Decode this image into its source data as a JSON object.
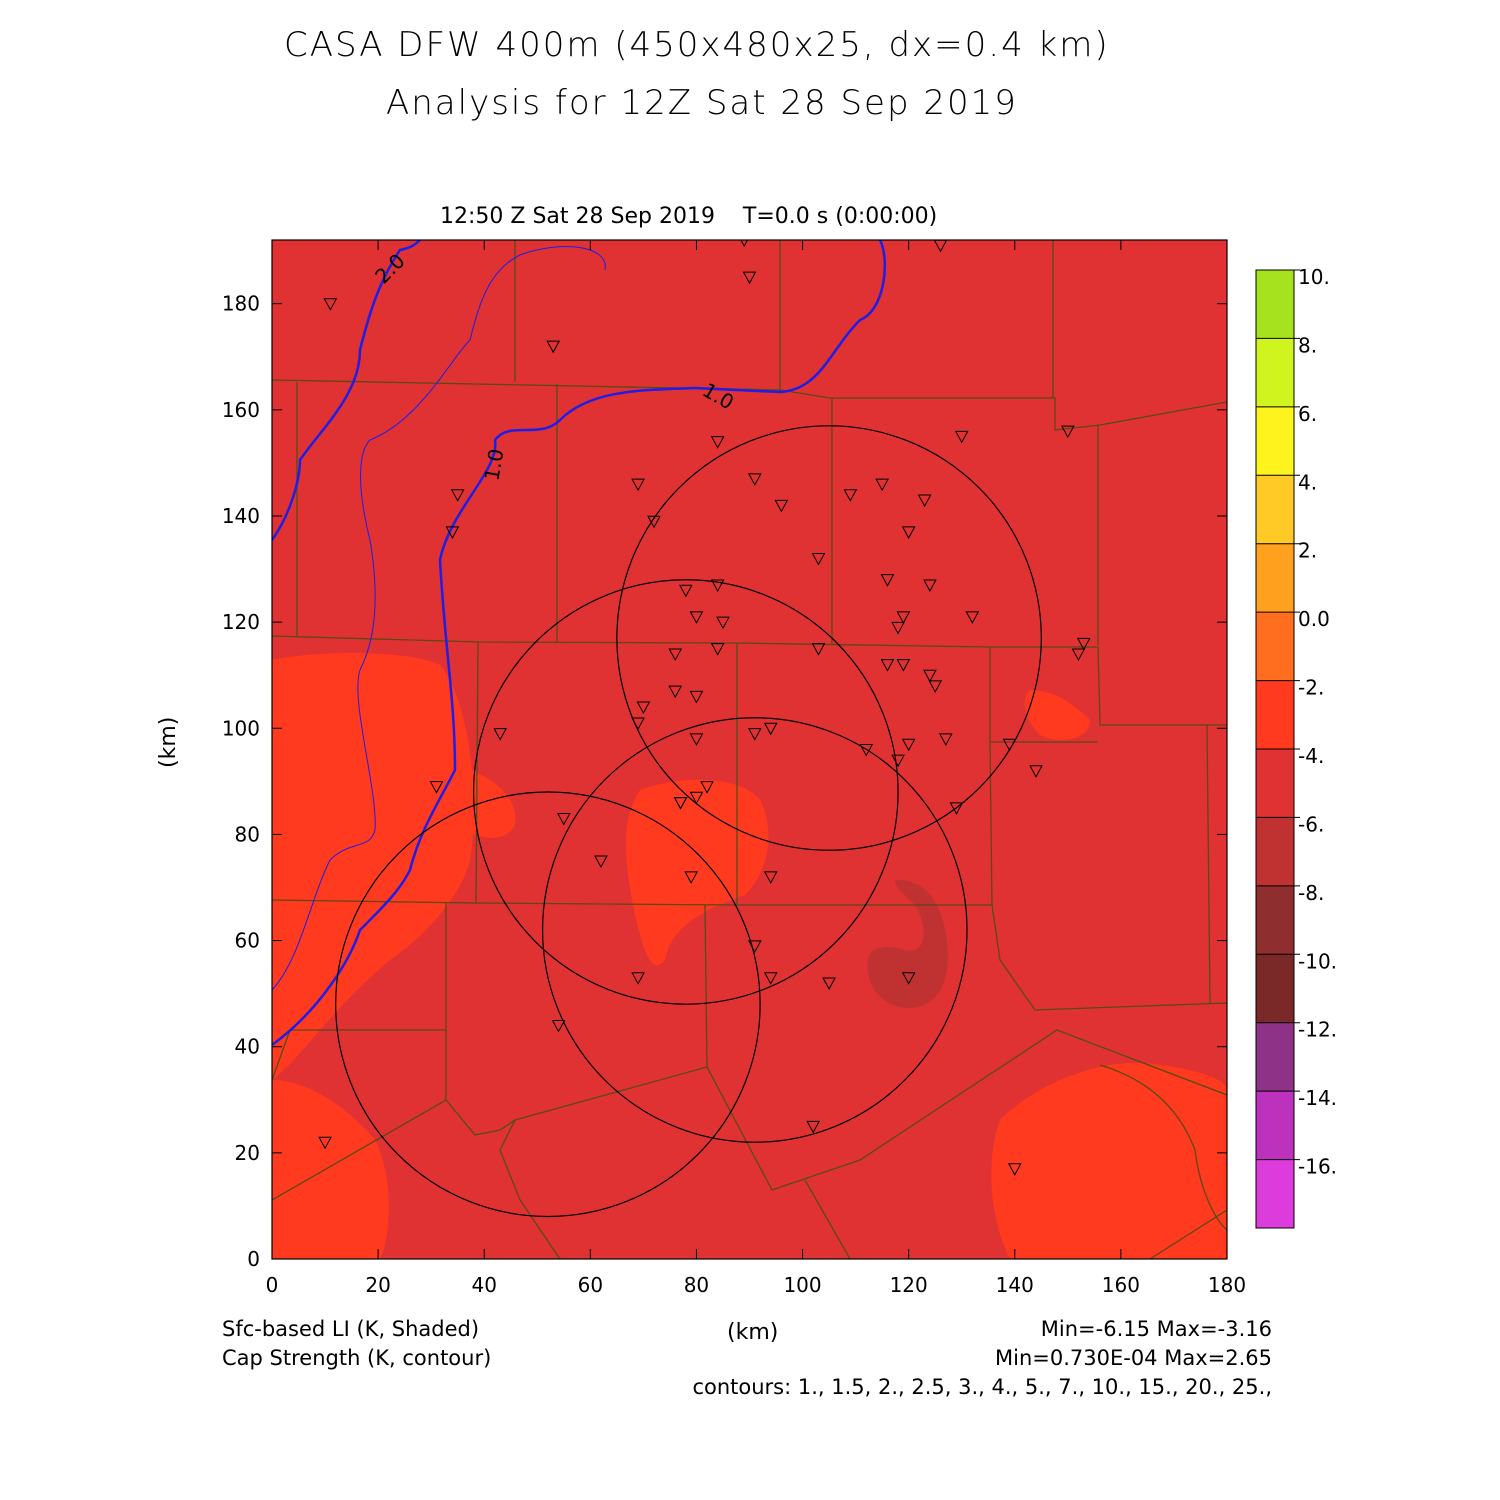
{
  "title_line1": "CASA DFW 400m (450x480x25, dx=0.4 km)",
  "title_line2": "Analysis for 12Z Sat 28 Sep 2019",
  "valid_time": "12:50 Z Sat 28 Sep 2019    T=0.0 s (0:00:00)",
  "axis": {
    "xlabel": "(km)",
    "ylabel": "(km)",
    "x_ticks": [
      "0",
      "20",
      "40",
      "60",
      "80",
      "100",
      "120",
      "140",
      "160",
      "180"
    ],
    "y_ticks": [
      "0",
      "20",
      "40",
      "60",
      "80",
      "100",
      "120",
      "140",
      "160",
      "180"
    ],
    "xlim": [
      0,
      180
    ],
    "ylim": [
      0,
      192
    ]
  },
  "colorbar": {
    "labels": [
      "10.",
      "8.",
      "6.",
      "4.",
      "2.",
      "0.0",
      "-2.",
      "-4.",
      "-6.",
      "-8.",
      "-10.",
      "-12.",
      "-14.",
      "-16."
    ],
    "colors": [
      "#a6e21e",
      "#d0f41e",
      "#fff31e",
      "#ffc926",
      "#ffa01e",
      "#ff6e1e",
      "#ff3a1e",
      "#e03232",
      "#c03232",
      "#8e2e2e",
      "#7a2828",
      "#8e3288",
      "#bd32bd",
      "#dc3cdc"
    ]
  },
  "field_colors": {
    "base": "#e03232",
    "warmer": "#ff3a1e",
    "cooler": "#c03232",
    "cap_contour": "#1e1ee6",
    "county": "#5a4a14",
    "radar_ring": "#000000"
  },
  "contour_labels": [
    "2.0",
    "1.0",
    "1.0"
  ],
  "legend": {
    "field1": "Sfc-based LI (K, Shaded)",
    "field2": "Cap Strength (K, contour)",
    "xunits": "(km)",
    "minmax1": "Min=-6.15 Max=-3.16",
    "minmax2": "Min=0.730E-04 Max=2.65",
    "contours": "contours: 1., 1.5, 2., 2.5, 3., 4., 5., 7., 10., 15., 20., 25.,"
  },
  "radars": [
    {
      "x": 105,
      "y": 117,
      "r": 40
    },
    {
      "x": 78,
      "y": 88,
      "r": 40
    },
    {
      "x": 91,
      "y": 62,
      "r": 40
    },
    {
      "x": 52,
      "y": 48,
      "r": 40
    }
  ],
  "stations": [
    [
      89,
      192
    ],
    [
      126,
      191
    ],
    [
      90,
      185
    ],
    [
      11,
      180
    ],
    [
      53,
      172
    ],
    [
      130,
      155
    ],
    [
      150,
      156
    ],
    [
      84,
      154
    ],
    [
      91,
      147
    ],
    [
      69,
      146
    ],
    [
      35,
      144
    ],
    [
      109,
      144
    ],
    [
      115,
      146
    ],
    [
      123,
      143
    ],
    [
      96,
      142
    ],
    [
      72,
      139
    ],
    [
      34,
      137
    ],
    [
      120,
      137
    ],
    [
      103,
      132
    ],
    [
      78,
      126
    ],
    [
      84,
      127
    ],
    [
      116,
      128
    ],
    [
      124,
      127
    ],
    [
      80,
      121
    ],
    [
      85,
      120
    ],
    [
      119,
      121
    ],
    [
      118,
      119
    ],
    [
      132,
      121
    ],
    [
      153,
      116
    ],
    [
      152,
      114
    ],
    [
      76,
      114
    ],
    [
      84,
      115
    ],
    [
      103,
      115
    ],
    [
      116,
      112
    ],
    [
      119,
      112
    ],
    [
      124,
      110
    ],
    [
      125,
      108
    ],
    [
      76,
      107
    ],
    [
      80,
      106
    ],
    [
      70,
      104
    ],
    [
      69,
      101
    ],
    [
      43,
      99
    ],
    [
      94,
      100
    ],
    [
      91,
      99
    ],
    [
      80,
      98
    ],
    [
      112,
      96
    ],
    [
      120,
      97
    ],
    [
      127,
      98
    ],
    [
      139,
      97
    ],
    [
      118,
      94
    ],
    [
      144,
      92
    ],
    [
      31,
      89
    ],
    [
      82,
      89
    ],
    [
      80,
      87
    ],
    [
      77,
      86
    ],
    [
      77,
      86
    ],
    [
      55,
      83
    ],
    [
      129,
      85
    ],
    [
      62,
      75
    ],
    [
      79,
      72
    ],
    [
      94,
      72
    ],
    [
      91,
      59
    ],
    [
      69,
      53
    ],
    [
      94,
      53
    ],
    [
      105,
      52
    ],
    [
      120,
      53
    ],
    [
      54,
      44
    ],
    [
      102,
      25
    ],
    [
      10,
      22
    ],
    [
      140,
      17
    ]
  ]
}
